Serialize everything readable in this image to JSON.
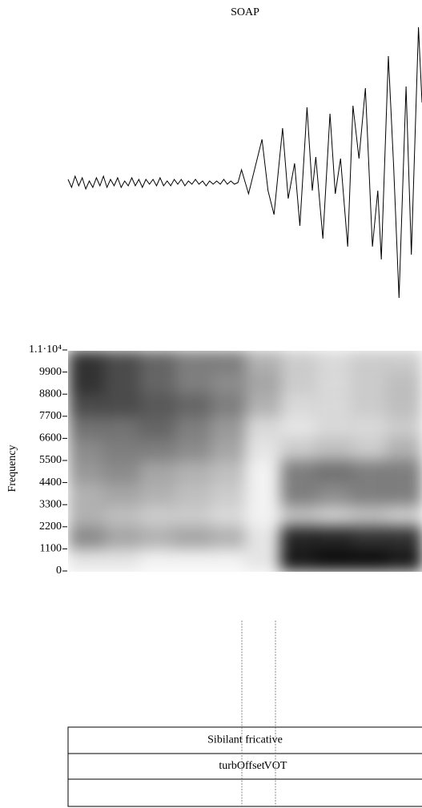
{
  "chart_data": [
    {
      "type": "line",
      "title": "SOAP",
      "color": "#000000",
      "xlim": [
        0,
        1
      ],
      "ylim": [
        -1,
        1
      ],
      "x": [
        0,
        0.01,
        0.02,
        0.03,
        0.04,
        0.05,
        0.06,
        0.07,
        0.08,
        0.09,
        0.1,
        0.11,
        0.12,
        0.13,
        0.14,
        0.15,
        0.16,
        0.17,
        0.18,
        0.19,
        0.2,
        0.21,
        0.22,
        0.23,
        0.24,
        0.25,
        0.26,
        0.27,
        0.28,
        0.29,
        0.3,
        0.31,
        0.32,
        0.33,
        0.34,
        0.35,
        0.36,
        0.37,
        0.38,
        0.39,
        0.4,
        0.41,
        0.42,
        0.43,
        0.44,
        0.45,
        0.46,
        0.47,
        0.48,
        0.49,
        0.51,
        0.548,
        0.565,
        0.582,
        0.606,
        0.622,
        0.64,
        0.655,
        0.675,
        0.69,
        0.7,
        0.72,
        0.74,
        0.755,
        0.77,
        0.79,
        0.805,
        0.822,
        0.84,
        0.86,
        0.875,
        0.885,
        0.905,
        0.92,
        0.935,
        0.955,
        0.97,
        0.99,
        1.0
      ],
      "values": [
        0.02,
        -0.03,
        0.04,
        -0.02,
        0.03,
        -0.04,
        0.01,
        -0.03,
        0.03,
        -0.02,
        0.04,
        -0.03,
        0.02,
        -0.02,
        0.03,
        -0.03,
        0.01,
        -0.02,
        0.03,
        -0.02,
        0.02,
        -0.03,
        0.02,
        -0.01,
        0.02,
        -0.02,
        0.03,
        -0.02,
        0.01,
        -0.02,
        0.02,
        -0.01,
        0.02,
        -0.02,
        0.01,
        -0.01,
        0.02,
        -0.01,
        0.01,
        -0.02,
        0.01,
        -0.01,
        0.01,
        -0.01,
        0.02,
        -0.01,
        0.01,
        -0.01,
        0.0,
        0.08,
        -0.07,
        0.27,
        -0.05,
        -0.2,
        0.34,
        -0.1,
        0.12,
        -0.27,
        0.47,
        -0.05,
        0.16,
        -0.35,
        0.43,
        -0.07,
        0.15,
        -0.4,
        0.48,
        0.15,
        0.59,
        -0.4,
        -0.05,
        -0.48,
        0.79,
        0.1,
        -0.72,
        0.6,
        -0.45,
        0.97,
        0.5
      ]
    },
    {
      "type": "heatmap",
      "ylabel": "Frequency",
      "xlim": [
        0,
        1
      ],
      "ylim": [
        0,
        11000
      ],
      "yticks": [
        {
          "value": 11000,
          "label": "1.1·10⁴"
        },
        9900,
        8800,
        7700,
        6600,
        5500,
        4400,
        3300,
        2200,
        1100,
        0
      ],
      "x_bins": [
        0,
        0.1,
        0.2,
        0.3,
        0.4,
        0.5,
        0.6,
        0.7,
        0.8,
        0.9,
        1.0
      ],
      "y_bins": [
        0,
        1100,
        2200,
        3300,
        4400,
        5500,
        6600,
        7700,
        8800,
        9900,
        11000
      ],
      "color": "#000000",
      "values": [
        [
          0.1,
          0.1,
          0.05,
          0.05,
          0.05,
          0.1,
          0.9,
          0.95,
          0.95,
          0.9
        ],
        [
          0.45,
          0.35,
          0.3,
          0.35,
          0.3,
          0.1,
          0.85,
          0.85,
          0.8,
          0.8
        ],
        [
          0.3,
          0.25,
          0.2,
          0.2,
          0.15,
          0.05,
          0.25,
          0.2,
          0.25,
          0.2
        ],
        [
          0.3,
          0.35,
          0.3,
          0.25,
          0.2,
          0.05,
          0.5,
          0.45,
          0.5,
          0.5
        ],
        [
          0.4,
          0.45,
          0.35,
          0.3,
          0.25,
          0.05,
          0.5,
          0.55,
          0.5,
          0.5
        ],
        [
          0.45,
          0.5,
          0.5,
          0.45,
          0.35,
          0.1,
          0.2,
          0.25,
          0.2,
          0.3
        ],
        [
          0.55,
          0.55,
          0.6,
          0.5,
          0.4,
          0.15,
          0.1,
          0.15,
          0.15,
          0.2
        ],
        [
          0.7,
          0.7,
          0.65,
          0.6,
          0.5,
          0.3,
          0.15,
          0.15,
          0.2,
          0.25
        ],
        [
          0.8,
          0.7,
          0.6,
          0.5,
          0.45,
          0.35,
          0.2,
          0.15,
          0.2,
          0.25
        ],
        [
          0.8,
          0.7,
          0.6,
          0.5,
          0.5,
          0.3,
          0.2,
          0.15,
          0.2,
          0.2
        ]
      ]
    },
    {
      "type": "tiers",
      "xlim": [
        0,
        1
      ],
      "tiers": [
        {
          "intervals": [
            {
              "start": 0,
              "end": 1,
              "label": "Sibilant fricative"
            }
          ]
        },
        {
          "points": [
            {
              "time": 0.491,
              "label": "turbOffset"
            },
            {
              "time": 0.586,
              "label": "VOT"
            }
          ]
        },
        {
          "intervals": []
        }
      ]
    }
  ]
}
